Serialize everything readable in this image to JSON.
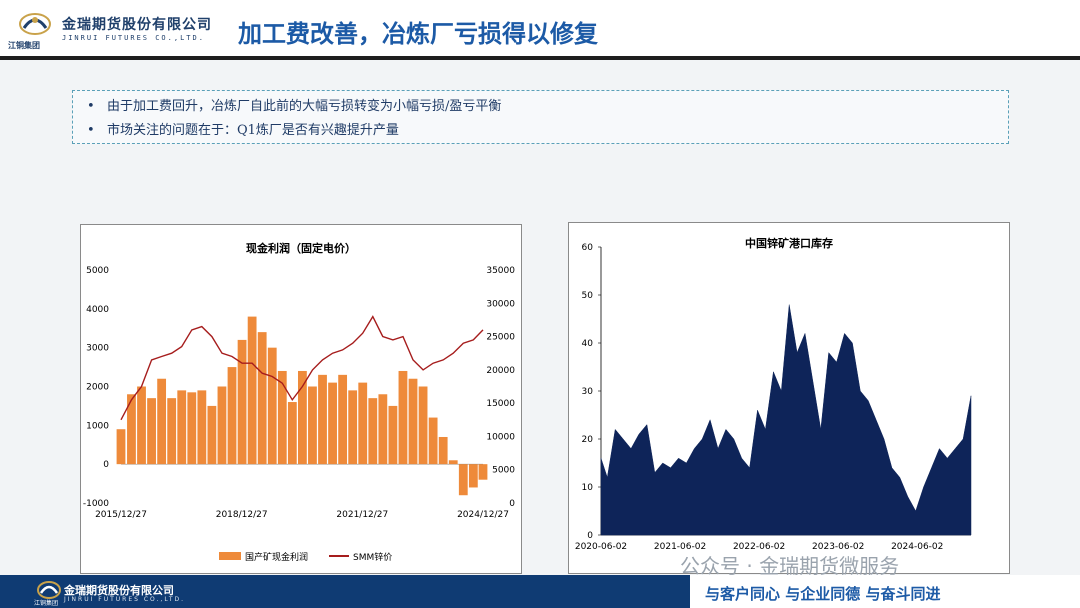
{
  "header": {
    "title": "加工费改善，冶炼厂亏损得以修复",
    "logo_cn": "金瑞期货股份有限公司",
    "logo_en": "JINRUI FUTURES CO.,LTD.",
    "logo_group": "江铜集团"
  },
  "bullets": [
    "由于加工费回升，冶炼厂自此前的大幅亏损转变为小幅亏损/盈亏平衡",
    "市场关注的问题在于：Q1炼厂是否有兴趣提升产量"
  ],
  "chart_data": [
    {
      "type": "bar",
      "title": "现金利润（固定电价）",
      "x_tick_labels": [
        "2015/12/27",
        "2018/12/27",
        "2021/12/27",
        "2024/12/27"
      ],
      "y_left_ticks": [
        "5000",
        "4000",
        "3000",
        "2000",
        "1000",
        "0",
        "-1000"
      ],
      "y_right_ticks": [
        "35000",
        "30000",
        "25000",
        "20000",
        "15000",
        "10000",
        "5000",
        "0"
      ],
      "ylim_left": [
        -1000,
        5000
      ],
      "ylim_right": [
        0,
        35000
      ],
      "legend_position": "bottom",
      "colors": {
        "bar": "#ee8a3a",
        "line": "#a61d1d"
      },
      "series": [
        {
          "name": "国产矿现金利润",
          "type": "bar",
          "axis": "left",
          "x": [
            2015.99,
            2016.25,
            2016.5,
            2016.75,
            2017.0,
            2017.25,
            2017.5,
            2017.75,
            2018.0,
            2018.25,
            2018.5,
            2018.75,
            2019.0,
            2019.25,
            2019.5,
            2019.75,
            2020.0,
            2020.25,
            2020.5,
            2020.75,
            2021.0,
            2021.25,
            2021.5,
            2021.75,
            2022.0,
            2022.25,
            2022.5,
            2022.75,
            2023.0,
            2023.25,
            2023.5,
            2023.75,
            2024.0,
            2024.25,
            2024.5,
            2024.75,
            2024.99
          ],
          "values": [
            900,
            1800,
            2000,
            1700,
            2200,
            1700,
            1900,
            1850,
            1900,
            1500,
            2000,
            2500,
            3200,
            3800,
            3400,
            3000,
            2400,
            1600,
            2400,
            2000,
            2300,
            2100,
            2300,
            1900,
            2100,
            1700,
            1800,
            1500,
            2400,
            2200,
            2000,
            1200,
            700,
            100,
            -800,
            -600,
            -400
          ]
        },
        {
          "name": "SMM锌价",
          "type": "line",
          "axis": "right",
          "x": [
            2015.99,
            2016.25,
            2016.5,
            2016.75,
            2017.0,
            2017.25,
            2017.5,
            2017.75,
            2018.0,
            2018.25,
            2018.5,
            2018.75,
            2019.0,
            2019.25,
            2019.5,
            2019.75,
            2020.0,
            2020.25,
            2020.5,
            2020.75,
            2021.0,
            2021.25,
            2021.5,
            2021.75,
            2022.0,
            2022.25,
            2022.5,
            2022.75,
            2023.0,
            2023.25,
            2023.5,
            2023.75,
            2024.0,
            2024.25,
            2024.5,
            2024.75,
            2024.99
          ],
          "values": [
            12500,
            15500,
            17500,
            21500,
            22000,
            22500,
            23500,
            26000,
            26500,
            25000,
            22500,
            22000,
            21000,
            21000,
            19500,
            19000,
            18000,
            15500,
            17500,
            20000,
            21500,
            22500,
            23000,
            24000,
            25500,
            28000,
            25000,
            24500,
            25000,
            21500,
            20000,
            21000,
            21500,
            22500,
            24000,
            24500,
            26000
          ]
        }
      ]
    },
    {
      "type": "area",
      "title": "中国锌矿港口库存",
      "x_tick_labels": [
        "2020-06-02",
        "2021-06-02",
        "2022-06-02",
        "2023-06-02",
        "2024-06-02"
      ],
      "y_ticks": [
        "60",
        "50",
        "40",
        "30",
        "20",
        "10",
        "0"
      ],
      "ylim": [
        0,
        60
      ],
      "colors": {
        "area": "#0e2459"
      },
      "series": [
        {
          "x": [
            2020.42,
            2020.5,
            2020.6,
            2020.7,
            2020.8,
            2020.9,
            2021.0,
            2021.1,
            2021.2,
            2021.3,
            2021.4,
            2021.5,
            2021.6,
            2021.7,
            2021.8,
            2021.9,
            2022.0,
            2022.1,
            2022.2,
            2022.3,
            2022.4,
            2022.5,
            2022.6,
            2022.7,
            2022.8,
            2022.9,
            2023.0,
            2023.1,
            2023.2,
            2023.3,
            2023.4,
            2023.5,
            2023.6,
            2023.7,
            2023.8,
            2023.9,
            2024.0,
            2024.1,
            2024.2,
            2024.3,
            2024.4,
            2024.5,
            2024.6,
            2024.7,
            2024.8,
            2024.9,
            2025.0,
            2025.1
          ],
          "values": [
            16,
            12,
            22,
            20,
            18,
            21,
            23,
            13,
            15,
            14,
            16,
            15,
            18,
            20,
            24,
            18,
            22,
            20,
            16,
            14,
            26,
            22,
            34,
            30,
            48,
            38,
            42,
            32,
            22,
            38,
            36,
            42,
            40,
            30,
            28,
            24,
            20,
            14,
            12,
            8,
            5,
            10,
            14,
            18,
            16,
            18,
            20,
            29
          ]
        }
      ]
    }
  ],
  "watermark": "公众号 · 金瑞期货微服务",
  "footer": {
    "slogan": "与客户同心  与企业同德  与奋斗同进",
    "logo_cn": "金瑞期货股份有限公司",
    "logo_en": "JINRUI FUTURES CO.,LTD.",
    "logo_group": "江铜集团"
  }
}
